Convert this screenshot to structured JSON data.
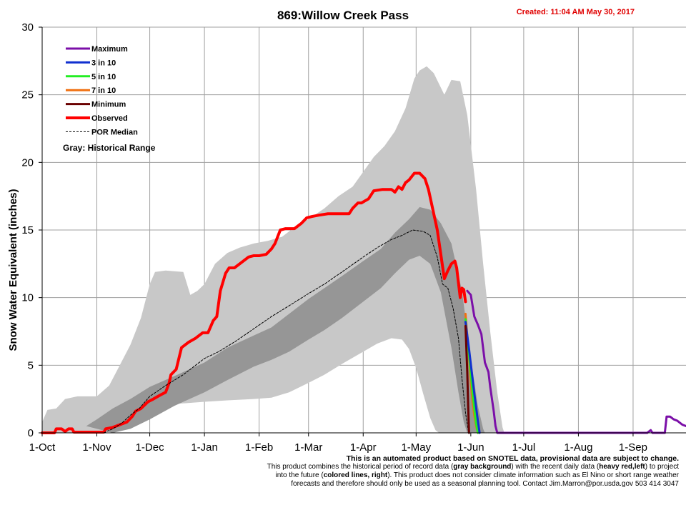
{
  "chart_data": {
    "type": "line",
    "title": "869:Willow Creek Pass",
    "created": "Created: 11:04 AM May 30, 2017",
    "ylabel": "Snow Water Equivalent (inches)",
    "ylim": [
      0,
      30
    ],
    "yticks": [
      "0",
      "5",
      "10",
      "15",
      "20",
      "25",
      "30"
    ],
    "xticks": [
      "1-Oct",
      "1-Nov",
      "1-Dec",
      "1-Jan",
      "1-Feb",
      "1-Mar",
      "1-Apr",
      "1-May",
      "1-Jun",
      "1-Jul",
      "1-Aug",
      "1-Sep"
    ],
    "xtick_days": [
      0,
      31,
      61,
      92,
      123,
      151,
      182,
      212,
      243,
      273,
      304,
      335
    ],
    "xmax_day": 365,
    "grid": true,
    "legend_position": "top-left",
    "colors": {
      "maximum": "#7b0fa8",
      "p3in10": "#1030d0",
      "p5in10": "#22ee22",
      "p7in10": "#f07010",
      "minimum": "#6a0000",
      "observed": "#ff0000",
      "median": "#000000",
      "range_outer": "#c8c8c8",
      "range_inner": "#969696",
      "grid": "#a0a0a0"
    },
    "legend": [
      {
        "label": "Maximum",
        "key": "maximum",
        "style": "solid"
      },
      {
        "label": "3 in 10",
        "key": "p3in10",
        "style": "solid"
      },
      {
        "label": "5 in 10",
        "key": "p5in10",
        "style": "solid"
      },
      {
        "label": "7 in 10",
        "key": "p7in10",
        "style": "solid"
      },
      {
        "label": "Minimum",
        "key": "minimum",
        "style": "solid"
      },
      {
        "label": "Observed",
        "key": "observed",
        "style": "thick"
      },
      {
        "label": "POR Median",
        "key": "median",
        "style": "dashed"
      }
    ],
    "gray_note": "Gray: Historical Range",
    "range_outer": {
      "upper": [
        [
          0,
          0.8
        ],
        [
          3,
          1.7
        ],
        [
          8,
          1.8
        ],
        [
          13,
          2.5
        ],
        [
          20,
          2.7
        ],
        [
          31,
          2.7
        ],
        [
          38,
          3.5
        ],
        [
          44,
          5.0
        ],
        [
          50,
          6.5
        ],
        [
          56,
          8.5
        ],
        [
          61,
          11.0
        ],
        [
          64,
          11.9
        ],
        [
          70,
          12.0
        ],
        [
          80,
          11.9
        ],
        [
          84,
          10.2
        ],
        [
          88,
          10.5
        ],
        [
          92,
          11.0
        ],
        [
          98,
          12.5
        ],
        [
          105,
          13.3
        ],
        [
          112,
          13.7
        ],
        [
          120,
          14.0
        ],
        [
          128,
          14.2
        ],
        [
          136,
          14.5
        ],
        [
          143,
          15.2
        ],
        [
          151,
          15.8
        ],
        [
          160,
          16.6
        ],
        [
          168,
          17.5
        ],
        [
          176,
          18.2
        ],
        [
          182,
          19.3
        ],
        [
          188,
          20.4
        ],
        [
          194,
          21.2
        ],
        [
          200,
          22.3
        ],
        [
          206,
          24.0
        ],
        [
          211,
          26.2
        ],
        [
          214,
          26.8
        ],
        [
          218,
          27.1
        ],
        [
          222,
          26.6
        ],
        [
          228,
          25.0
        ],
        [
          232,
          26.1
        ],
        [
          237,
          26.0
        ],
        [
          241,
          23.5
        ],
        [
          246,
          18.0
        ],
        [
          250,
          12.5
        ],
        [
          254,
          7.5
        ],
        [
          258,
          3.0
        ],
        [
          261,
          0.4
        ],
        [
          262,
          0
        ],
        [
          365,
          0
        ]
      ],
      "lower": [
        [
          0,
          0
        ],
        [
          31,
          0
        ],
        [
          42,
          0.2
        ],
        [
          50,
          0.8
        ],
        [
          56,
          1.4
        ],
        [
          61,
          1.9
        ],
        [
          70,
          2.1
        ],
        [
          82,
          2.2
        ],
        [
          92,
          2.3
        ],
        [
          105,
          2.4
        ],
        [
          120,
          2.5
        ],
        [
          130,
          2.6
        ],
        [
          140,
          3.0
        ],
        [
          151,
          3.7
        ],
        [
          160,
          4.3
        ],
        [
          170,
          5.1
        ],
        [
          182,
          6.0
        ],
        [
          190,
          6.6
        ],
        [
          198,
          7.0
        ],
        [
          204,
          6.9
        ],
        [
          208,
          6.2
        ],
        [
          212,
          4.8
        ],
        [
          216,
          2.9
        ],
        [
          220,
          1.1
        ],
        [
          223,
          0.2
        ],
        [
          225,
          0
        ],
        [
          365,
          0
        ]
      ]
    },
    "range_inner": {
      "upper": [
        [
          25,
          0.5
        ],
        [
          31,
          1.0
        ],
        [
          40,
          1.8
        ],
        [
          50,
          2.5
        ],
        [
          61,
          3.4
        ],
        [
          75,
          4.2
        ],
        [
          92,
          5.2
        ],
        [
          105,
          6.3
        ],
        [
          120,
          7.2
        ],
        [
          130,
          7.8
        ],
        [
          140,
          8.8
        ],
        [
          151,
          9.9
        ],
        [
          160,
          10.7
        ],
        [
          170,
          11.6
        ],
        [
          182,
          12.7
        ],
        [
          192,
          13.6
        ],
        [
          200,
          14.8
        ],
        [
          208,
          15.8
        ],
        [
          214,
          16.7
        ],
        [
          220,
          16.5
        ],
        [
          226,
          15.5
        ],
        [
          232,
          14.0
        ],
        [
          238,
          10.5
        ],
        [
          243,
          5.5
        ],
        [
          247,
          2.0
        ],
        [
          250,
          0.3
        ],
        [
          251,
          0
        ]
      ],
      "lower": [
        [
          40,
          0
        ],
        [
          50,
          0.3
        ],
        [
          61,
          1.0
        ],
        [
          75,
          2.0
        ],
        [
          92,
          3.0
        ],
        [
          105,
          3.9
        ],
        [
          120,
          4.9
        ],
        [
          130,
          5.4
        ],
        [
          140,
          6.0
        ],
        [
          151,
          6.9
        ],
        [
          160,
          7.6
        ],
        [
          170,
          8.5
        ],
        [
          182,
          9.7
        ],
        [
          192,
          10.7
        ],
        [
          200,
          11.8
        ],
        [
          208,
          12.8
        ],
        [
          214,
          13.1
        ],
        [
          220,
          12.5
        ],
        [
          226,
          10.4
        ],
        [
          232,
          6.3
        ],
        [
          236,
          3.0
        ],
        [
          239,
          0.8
        ],
        [
          241,
          0
        ]
      ]
    },
    "series": [
      {
        "name": "Observed",
        "key": "observed",
        "width": 4,
        "dash": "",
        "points": [
          [
            0,
            0
          ],
          [
            7,
            0
          ],
          [
            8,
            0.3
          ],
          [
            11,
            0.3
          ],
          [
            13,
            0.1
          ],
          [
            15,
            0.3
          ],
          [
            17,
            0.3
          ],
          [
            18,
            0.05
          ],
          [
            35,
            0.05
          ],
          [
            36,
            0.3
          ],
          [
            40,
            0.4
          ],
          [
            44,
            0.6
          ],
          [
            48,
            0.8
          ],
          [
            51,
            1.2
          ],
          [
            53,
            1.6
          ],
          [
            56,
            1.8
          ],
          [
            60,
            2.3
          ],
          [
            63,
            2.5
          ],
          [
            67,
            2.8
          ],
          [
            70,
            3.0
          ],
          [
            72,
            3.7
          ],
          [
            73,
            4.3
          ],
          [
            76,
            4.7
          ],
          [
            79,
            6.3
          ],
          [
            83,
            6.7
          ],
          [
            87,
            7.0
          ],
          [
            91,
            7.4
          ],
          [
            94,
            7.4
          ],
          [
            97,
            8.3
          ],
          [
            99,
            8.6
          ],
          [
            101,
            10.5
          ],
          [
            104,
            11.8
          ],
          [
            106,
            12.2
          ],
          [
            109,
            12.2
          ],
          [
            113,
            12.6
          ],
          [
            117,
            13.0
          ],
          [
            120,
            13.1
          ],
          [
            123,
            13.1
          ],
          [
            127,
            13.2
          ],
          [
            130,
            13.6
          ],
          [
            132,
            14.0
          ],
          [
            135,
            15.0
          ],
          [
            138,
            15.1
          ],
          [
            143,
            15.1
          ],
          [
            147,
            15.5
          ],
          [
            150,
            15.9
          ],
          [
            153,
            16.0
          ],
          [
            157,
            16.1
          ],
          [
            162,
            16.2
          ],
          [
            168,
            16.2
          ],
          [
            174,
            16.2
          ],
          [
            176,
            16.6
          ],
          [
            179,
            17.0
          ],
          [
            181,
            17.0
          ],
          [
            185,
            17.3
          ],
          [
            188,
            17.9
          ],
          [
            193,
            18.0
          ],
          [
            198,
            18.0
          ],
          [
            200,
            17.8
          ],
          [
            202,
            18.2
          ],
          [
            204,
            18.0
          ],
          [
            206,
            18.5
          ],
          [
            208,
            18.7
          ],
          [
            211,
            19.2
          ],
          [
            214,
            19.2
          ],
          [
            217,
            18.8
          ],
          [
            219,
            18.0
          ],
          [
            222,
            16.2
          ],
          [
            224,
            15.0
          ],
          [
            226,
            13.2
          ],
          [
            228,
            11.4
          ],
          [
            230,
            12.0
          ],
          [
            232,
            12.5
          ],
          [
            234,
            12.7
          ],
          [
            235,
            12.2
          ],
          [
            237,
            10.0
          ],
          [
            238,
            10.7
          ],
          [
            239,
            10.6
          ],
          [
            240,
            9.7
          ]
        ]
      },
      {
        "name": "POR Median",
        "key": "median",
        "width": 1,
        "dash": "3,2",
        "points": [
          [
            35,
            0
          ],
          [
            40,
            0.3
          ],
          [
            45,
            0.7
          ],
          [
            50,
            1.3
          ],
          [
            55,
            1.8
          ],
          [
            61,
            2.7
          ],
          [
            70,
            3.5
          ],
          [
            80,
            4.3
          ],
          [
            92,
            5.5
          ],
          [
            100,
            6.0
          ],
          [
            110,
            6.8
          ],
          [
            120,
            7.7
          ],
          [
            130,
            8.6
          ],
          [
            140,
            9.4
          ],
          [
            151,
            10.3
          ],
          [
            160,
            11.0
          ],
          [
            170,
            11.9
          ],
          [
            182,
            13.0
          ],
          [
            190,
            13.7
          ],
          [
            198,
            14.3
          ],
          [
            204,
            14.6
          ],
          [
            210,
            15.0
          ],
          [
            216,
            14.9
          ],
          [
            220,
            14.6
          ],
          [
            224,
            13.0
          ],
          [
            227,
            11.0
          ],
          [
            230,
            10.7
          ],
          [
            233,
            9.2
          ],
          [
            236,
            7.0
          ],
          [
            238,
            4.0
          ],
          [
            240,
            1.5
          ],
          [
            241.5,
            0.2
          ],
          [
            242,
            0
          ]
        ]
      },
      {
        "name": "Maximum",
        "key": "maximum",
        "width": 3,
        "dash": "",
        "points": [
          [
            241,
            10.5
          ],
          [
            243,
            10.2
          ],
          [
            245,
            8.6
          ],
          [
            247,
            8.0
          ],
          [
            249,
            7.3
          ],
          [
            251,
            5.2
          ],
          [
            253,
            4.5
          ],
          [
            254,
            3.4
          ],
          [
            256,
            1.6
          ],
          [
            257,
            0.5
          ],
          [
            258,
            0
          ],
          [
            343,
            0
          ],
          [
            345,
            0.2
          ],
          [
            346,
            0
          ],
          [
            353,
            0
          ],
          [
            354,
            1.2
          ],
          [
            356,
            1.2
          ],
          [
            358,
            1.0
          ],
          [
            360,
            0.9
          ],
          [
            363,
            0.6
          ],
          [
            365,
            0.5
          ]
        ]
      },
      {
        "name": "7 in 10",
        "key": "p7in10",
        "width": 3,
        "dash": "",
        "points": [
          [
            240,
            8.8
          ],
          [
            241,
            7.2
          ],
          [
            242,
            5.6
          ],
          [
            243,
            3.7
          ],
          [
            244,
            2.3
          ],
          [
            245,
            1.3
          ],
          [
            246,
            0.5
          ],
          [
            247,
            0
          ]
        ]
      },
      {
        "name": "5 in 10",
        "key": "p5in10",
        "width": 3,
        "dash": "",
        "points": [
          [
            240,
            8.4
          ],
          [
            241,
            7.0
          ],
          [
            242,
            5.8
          ],
          [
            243,
            4.4
          ],
          [
            244,
            3.0
          ],
          [
            245,
            1.8
          ],
          [
            246,
            0.7
          ],
          [
            247,
            0
          ]
        ]
      },
      {
        "name": "3 in 10",
        "key": "p3in10",
        "width": 3,
        "dash": "",
        "points": [
          [
            240,
            8.2
          ],
          [
            242,
            6.2
          ],
          [
            244,
            4.0
          ],
          [
            245,
            2.9
          ],
          [
            246,
            1.9
          ],
          [
            247,
            0.9
          ],
          [
            248,
            0
          ]
        ]
      },
      {
        "name": "Minimum",
        "key": "minimum",
        "width": 3,
        "dash": "",
        "points": [
          [
            240,
            7.9
          ],
          [
            241,
            4.5
          ],
          [
            241.5,
            2.0
          ],
          [
            242,
            0
          ]
        ]
      }
    ]
  },
  "footer": {
    "line1": "This is an automated product based on SNOTEL data, provisional data are subject to change.",
    "line2a": "This product combines the historical period of record data (",
    "line2b": "gray background",
    "line2c": ") with the recent daily data (",
    "line2d": "heavy red,left",
    "line2e": ") to project",
    "line3a": "into the future (",
    "line3b": "colored lines, right",
    "line3c": "). This product does not consider climate information such as El Nino or short range weather",
    "line4": "forecasts and therefore should only be used as a seasonal planning tool. Contact Jim.Marron@por.usda.gov 503 414 3047"
  }
}
